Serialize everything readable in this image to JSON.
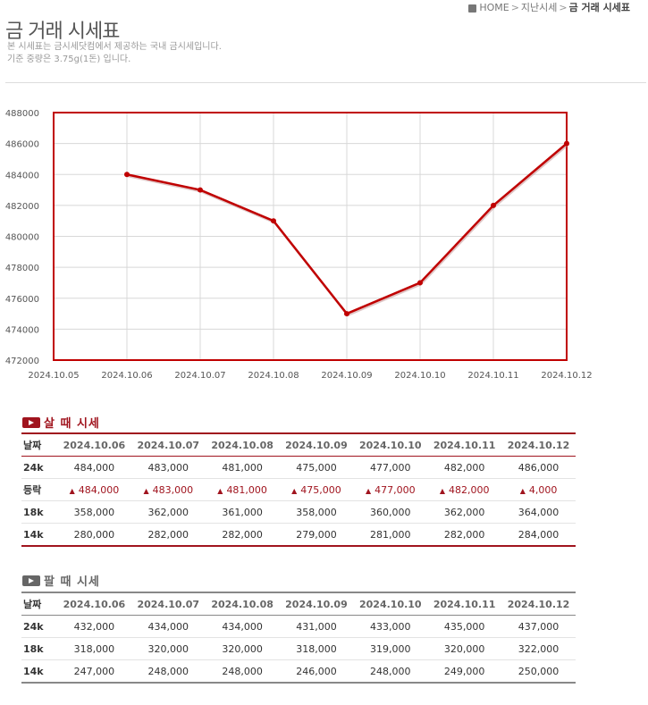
{
  "page": {
    "title": "금 거래 시세표",
    "description_line1": "본 시세표는 금시세닷컴에서 제공하는 국내 금시세입니다.",
    "description_line2": "기준 중량은 3.75g(1돈) 입니다."
  },
  "breadcrumb": {
    "home": "HOME",
    "parent": "지난시세",
    "current": "금 거래 시세표"
  },
  "colors": {
    "line": "#c00000",
    "frame": "#c00000",
    "buy_accent": "#a0141e",
    "sell_accent": "#888888"
  },
  "chart_data": {
    "type": "line",
    "x": [
      "2024.10.05",
      "2024.10.06",
      "2024.10.07",
      "2024.10.08",
      "2024.10.09",
      "2024.10.10",
      "2024.10.11",
      "2024.10.12"
    ],
    "series": [
      {
        "values": [
          null,
          484000,
          483000,
          481000,
          475000,
          477000,
          482000,
          486000
        ]
      }
    ],
    "y_ticks": [
      "472000",
      "474000",
      "476000",
      "478000",
      "480000",
      "482000",
      "484000",
      "486000",
      "488000"
    ],
    "ylim": [
      472000,
      488000
    ],
    "grid": true
  },
  "buy": {
    "title": "살 때 시세",
    "row_header": "날짜",
    "dates": [
      "2024.10.06",
      "2024.10.07",
      "2024.10.08",
      "2024.10.09",
      "2024.10.10",
      "2024.10.11",
      "2024.10.12"
    ],
    "rows": [
      {
        "label": "24k",
        "values": [
          "484,000",
          "483,000",
          "481,000",
          "475,000",
          "477,000",
          "482,000",
          "486,000"
        ]
      },
      {
        "label": "등락",
        "values": [
          "484,000",
          "483,000",
          "481,000",
          "475,000",
          "477,000",
          "482,000",
          "4,000"
        ],
        "arrow": "▲"
      },
      {
        "label": "18k",
        "values": [
          "358,000",
          "362,000",
          "361,000",
          "358,000",
          "360,000",
          "362,000",
          "364,000"
        ]
      },
      {
        "label": "14k",
        "values": [
          "280,000",
          "282,000",
          "282,000",
          "279,000",
          "281,000",
          "282,000",
          "284,000"
        ]
      }
    ]
  },
  "sell": {
    "title": "팔 때 시세",
    "row_header": "날짜",
    "dates": [
      "2024.10.06",
      "2024.10.07",
      "2024.10.08",
      "2024.10.09",
      "2024.10.10",
      "2024.10.11",
      "2024.10.12"
    ],
    "rows": [
      {
        "label": "24k",
        "values": [
          "432,000",
          "434,000",
          "434,000",
          "431,000",
          "433,000",
          "435,000",
          "437,000"
        ]
      },
      {
        "label": "18k",
        "values": [
          "318,000",
          "320,000",
          "320,000",
          "318,000",
          "319,000",
          "320,000",
          "322,000"
        ]
      },
      {
        "label": "14k",
        "values": [
          "247,000",
          "248,000",
          "248,000",
          "246,000",
          "248,000",
          "249,000",
          "250,000"
        ]
      }
    ]
  }
}
